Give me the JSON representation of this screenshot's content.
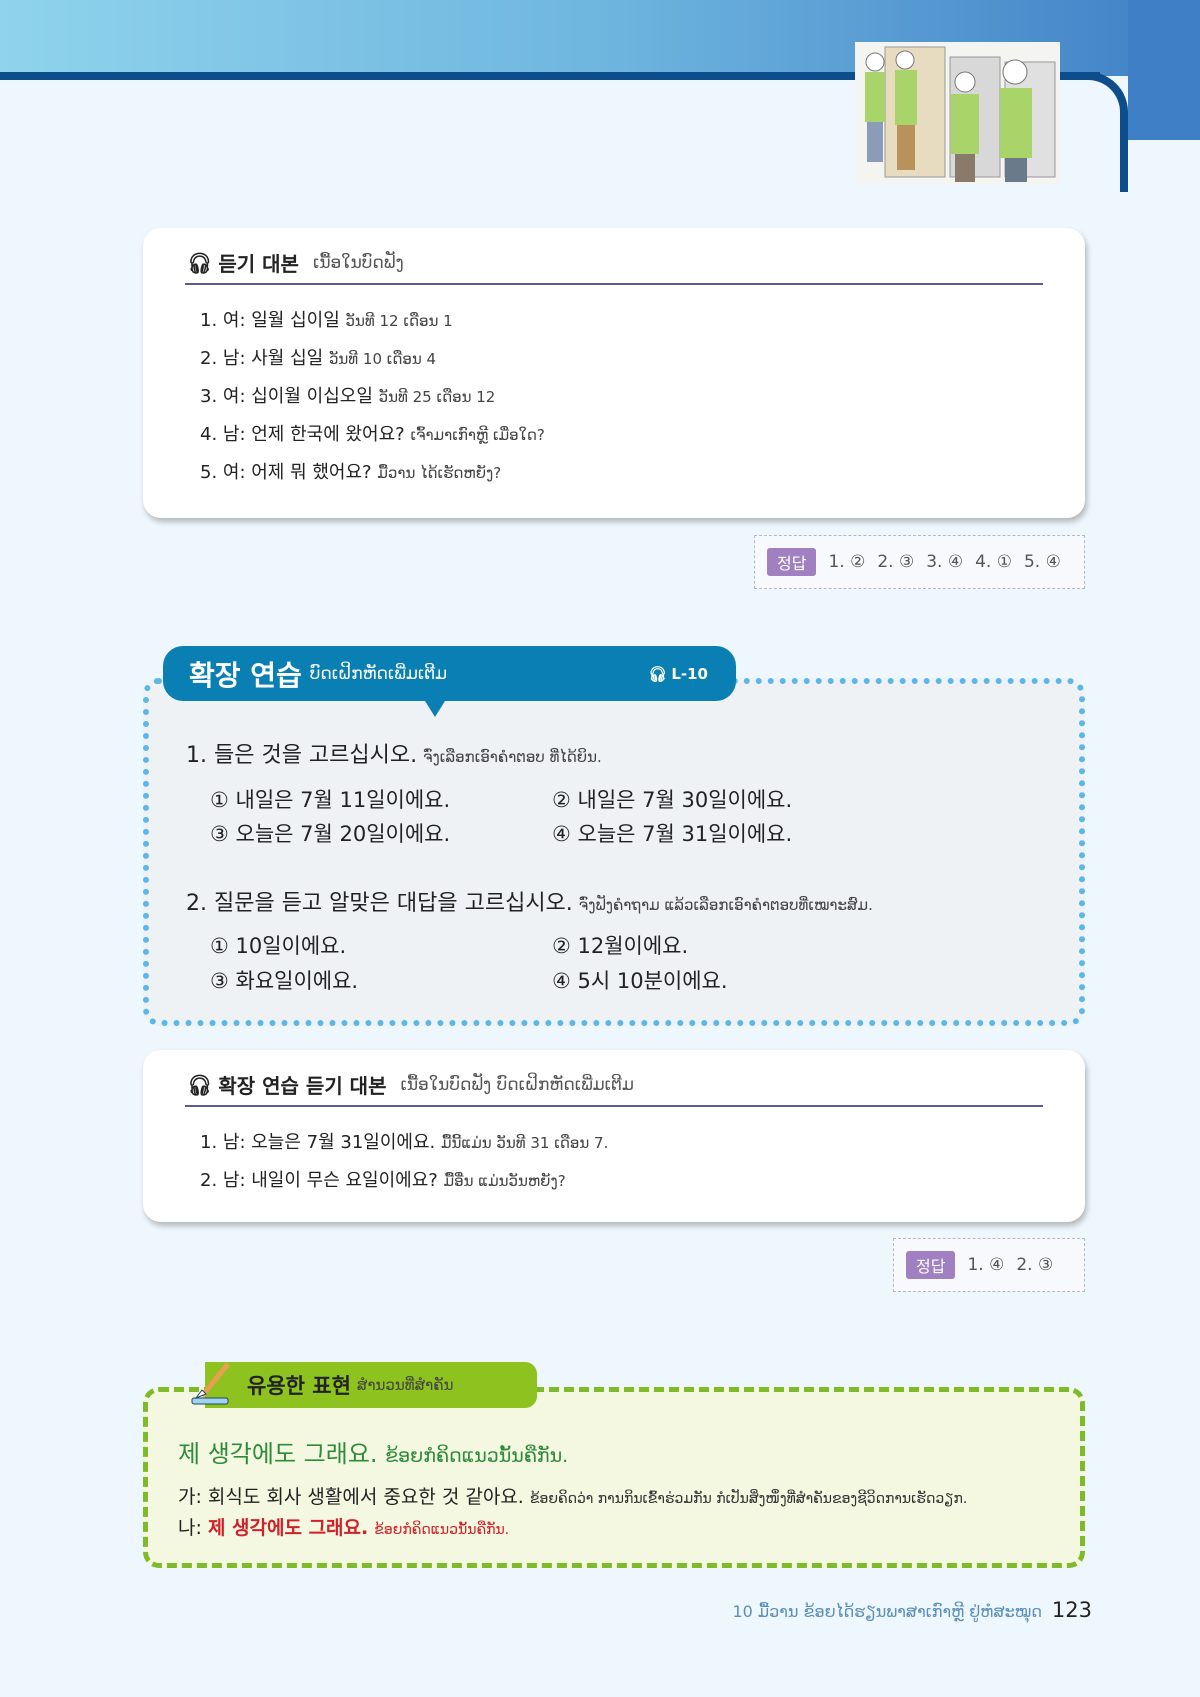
{
  "colors": {
    "accent_blue": "#0a7fb3",
    "dotted_blue": "#5bb7e8",
    "green": "#8dc21f",
    "answer_tag": "#a080c0",
    "red": "#d0202a",
    "green_text": "#2e8b3a"
  },
  "listening_script": {
    "icon": "headphones-icon",
    "title": "듣기 대본",
    "subtitle": "ເນື້ອໃນບົດຟັງ",
    "lines": [
      {
        "ko": "1. 여: 일월 십이일",
        "lo": "ວັນທີ 12 ເດືອນ 1"
      },
      {
        "ko": "2. 남: 사월 십일",
        "lo": "ວັນທີ 10 ເດືອນ 4"
      },
      {
        "ko": "3. 여: 십이월 이십오일",
        "lo": "ວັນທີ 25 ເດືອນ 12"
      },
      {
        "ko": "4. 남: 언제 한국에 왔어요?",
        "lo": "ເຈົ້າມາເກົາຫຼີ ເມື່ອໃດ?"
      },
      {
        "ko": "5. 여: 어제 뭐 했어요?",
        "lo": "ມື້ວານ ໄດ້ເຮັດຫຍັງ?"
      }
    ]
  },
  "answer1": {
    "tag": "정답",
    "items": [
      "1. ②",
      "2. ③",
      "3. ④",
      "4. ①",
      "5. ④"
    ]
  },
  "extension": {
    "title": "확장 연습",
    "subtitle": "ບົດເຝິກຫັດເພີ່ມເຕີມ",
    "track": "L-10",
    "q1": {
      "ko": "1. 들은 것을 고르십시오.",
      "lo": "ຈົ່ງເລືອກເອົາຄຳຕອບ ທີ່ໄດ້ຍິນ.",
      "options": [
        "① 내일은 7월 11일이에요.",
        "② 내일은 7월 30일이에요.",
        "③ 오늘은 7월 20일이에요.",
        "④ 오늘은 7월 31일이에요."
      ]
    },
    "q2": {
      "ko": "2. 질문을 듣고 알맞은 대답을 고르십시오.",
      "lo": "ຈົ່ງຟັງຄຳຖາມ ແລ້ວເລືອກເອົາຄຳຕອບທີ່ເໝາະສົມ.",
      "options": [
        "① 10일이에요.",
        "② 12월이에요.",
        "③ 화요일이에요.",
        "④ 5시 10분이에요."
      ]
    }
  },
  "extension_script": {
    "title": "확장 연습 듣기 대본",
    "subtitle": "ເນື້ອໃນບົດຟັງ ບົດເຝິກຫັດເພີ່ມເຕີມ",
    "lines": [
      {
        "ko": "1. 남: 오늘은 7월 31일이에요.",
        "lo": "ມື້ນີ້ແມ່ນ ວັນທີ 31 ເດືອນ 7."
      },
      {
        "ko": "2. 남: 내일이 무슨 요일이에요?",
        "lo": "ມື້ອື່ນ ແມ່ນວັນຫຍັງ?"
      }
    ]
  },
  "answer2": {
    "tag": "정답",
    "items": [
      "1. ④",
      "2. ③"
    ]
  },
  "useful": {
    "title": "유용한 표현",
    "subtitle": "ສຳນວນທີ່ສຳຄັນ",
    "headline_ko": "제 생각에도 그래요.",
    "headline_lo": "ຂ້ອຍກໍຄິດແນວນັ້ນຄືກັນ.",
    "a_ko": "가: 회식도 회사 생활에서 중요한 것 같아요.",
    "a_lo": "ຂ້ອຍຄິດວ່າ ການກິນເຂົ້າຮ່ວມກັນ ກໍເປັນສິ່ງໜຶ່ງທີ່ສຳຄັນຂອງຊີວິດການເຮັດວຽກ.",
    "b_prefix": "나:",
    "b_ko": "제 생각에도 그래요.",
    "b_lo": "ຂ້ອຍກໍຄິດແນວນັ້ນຄືກັນ."
  },
  "footer": {
    "chapter": "10 ມື້ວານ ຂ້ອຍໄດ້ຮຽນພາສາເກົາຫຼີ ຢູ່ຫໍສະໝຸດ",
    "page": "123"
  }
}
